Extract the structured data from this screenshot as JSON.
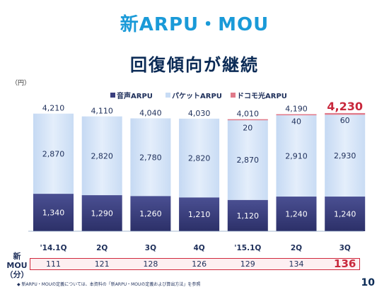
{
  "title": "新ARPU・MOU",
  "subtitle": "回復傾向が継続",
  "unit": "（円）",
  "footnote": "◆ 新ARPU・MOUの定義については、本資料の「新ARPU・MOUの定義および算出方法」を参照",
  "page_number": "10",
  "mou": {
    "label_line1": "新MOU",
    "label_line2": "（分）",
    "values": [
      "111",
      "121",
      "128",
      "126",
      "129",
      "134",
      "136"
    ],
    "highlight_index": 6
  },
  "colors": {
    "voice": "#3a3f7e",
    "packet": "#d3e3f7",
    "hikari": "#e07a8a",
    "highlight": "#c8283c"
  },
  "chart_data": {
    "type": "bar",
    "stacked": true,
    "categories": [
      "'14.1Q",
      "2Q",
      "3Q",
      "4Q",
      "'15.1Q",
      "2Q",
      "3Q"
    ],
    "series": [
      {
        "name": "音声ARPU",
        "values": [
          1340,
          1290,
          1260,
          1210,
          1120,
          1240,
          1240
        ],
        "labels": [
          "1,340",
          "1,290",
          "1,260",
          "1,210",
          "1,120",
          "1,240",
          "1,240"
        ]
      },
      {
        "name": "パケットARPU",
        "values": [
          2870,
          2820,
          2780,
          2820,
          2870,
          2910,
          2930
        ],
        "labels": [
          "2,870",
          "2,820",
          "2,780",
          "2,820",
          "2,870",
          "2,910",
          "2,930"
        ]
      },
      {
        "name": "ドコモ光ARPU",
        "values": [
          0,
          0,
          0,
          0,
          20,
          40,
          60
        ],
        "labels": [
          "",
          "",
          "",
          "",
          "20",
          "40",
          "60"
        ]
      }
    ],
    "totals": [
      4210,
      4110,
      4040,
      4030,
      4010,
      4190,
      4230
    ],
    "total_labels": [
      "4,210",
      "4,110",
      "4,040",
      "4,030",
      "4,010",
      "4,190",
      "4,230"
    ],
    "highlight_index": 6,
    "legend_position": "top-right"
  }
}
